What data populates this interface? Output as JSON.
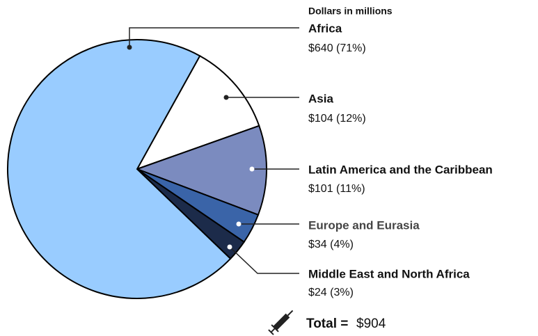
{
  "chart_data": {
    "type": "pie",
    "subtitle": "Dollars in millions",
    "categories": [
      "Africa",
      "Asia",
      "Latin America and the Caribbean",
      "Europe and Eurasia",
      "Middle East and North Africa"
    ],
    "values": [
      640,
      104,
      101,
      34,
      24
    ],
    "value_labels": [
      "$640 (71%)",
      "$104 (12%)",
      "$101 (11%)",
      "$34 (4%)",
      "$24 (3%)"
    ],
    "colors": [
      "#99ccff",
      "#ffffff",
      "#7b8bbf",
      "#3a64a8",
      "#1c2b4a"
    ],
    "total": {
      "label": "Total =",
      "value": 904,
      "value_label": "$904"
    }
  }
}
